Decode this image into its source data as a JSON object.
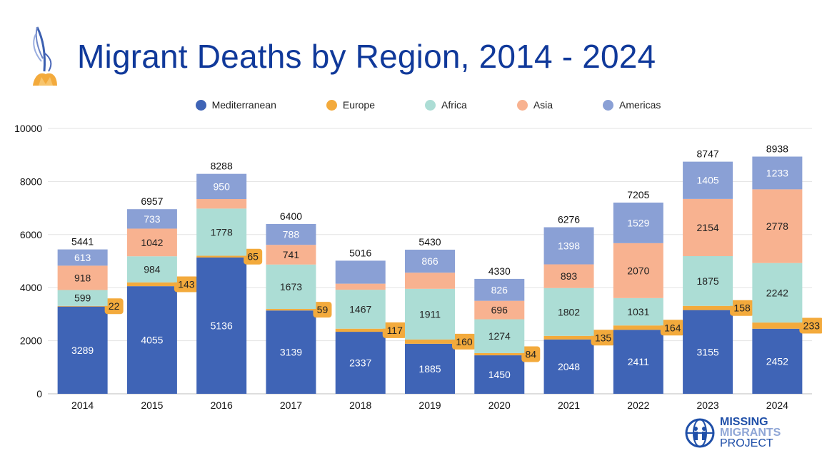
{
  "header": {
    "title": "Migrant Deaths by Region, 2014 - 2024",
    "logo_icon": "flower-icon"
  },
  "brand": {
    "line1": "MISSING",
    "line2": "MIGRANTS",
    "line3": "PROJECT",
    "icon": "globe-family-icon"
  },
  "colors": {
    "title": "#10399a",
    "Mediterranean": "#3f64b6",
    "Europe": "#f3aa3c",
    "Africa": "#acddd5",
    "Asia": "#f8b290",
    "Americas": "#8aa0d5"
  },
  "chart_data": {
    "type": "bar",
    "stacked": true,
    "title": "Migrant Deaths by Region, 2014 - 2024",
    "xlabel": "",
    "ylabel": "",
    "ylim": [
      0,
      10000
    ],
    "yticks": [
      0,
      2000,
      4000,
      6000,
      8000,
      10000
    ],
    "grid": true,
    "legend": "top-center",
    "categories": [
      "2014",
      "2015",
      "2016",
      "2017",
      "2018",
      "2019",
      "2020",
      "2021",
      "2022",
      "2023",
      "2024"
    ],
    "series": [
      {
        "name": "Mediterranean",
        "values": [
          3289,
          4055,
          5136,
          3139,
          2337,
          1885,
          1450,
          2048,
          2411,
          3155,
          2452
        ]
      },
      {
        "name": "Europe",
        "values": [
          22,
          143,
          65,
          59,
          117,
          160,
          84,
          135,
          164,
          158,
          233
        ]
      },
      {
        "name": "Africa",
        "values": [
          599,
          984,
          1778,
          1673,
          1467,
          1911,
          1274,
          1802,
          1031,
          1875,
          2242
        ]
      },
      {
        "name": "Asia",
        "values": [
          918,
          1042,
          359,
          741,
          229,
          608,
          696,
          893,
          2070,
          2154,
          2778
        ]
      },
      {
        "name": "Americas",
        "values": [
          613,
          733,
          950,
          788,
          866,
          866,
          826,
          1398,
          1529,
          1405,
          1233
        ]
      }
    ],
    "data_labels": [
      [
        "3289",
        "22",
        "599",
        "918",
        "613"
      ],
      [
        "4055",
        "143",
        "984",
        "1042",
        "733"
      ],
      [
        "5136",
        "65",
        "1778",
        "",
        "950"
      ],
      [
        "3139",
        "59",
        "1673",
        "741",
        "788"
      ],
      [
        "2337",
        "117",
        "1467",
        "",
        ""
      ],
      [
        "1885",
        "160",
        "1911",
        "",
        "866"
      ],
      [
        "1450",
        "84",
        "1274",
        "696",
        "826"
      ],
      [
        "2048",
        "135",
        "1802",
        "893",
        "1398"
      ],
      [
        "2411",
        "164",
        "1031",
        "2070",
        "1529"
      ],
      [
        "3155",
        "158",
        "1875",
        "2154",
        "1405"
      ],
      [
        "2452",
        "233",
        "2242",
        "2778",
        "1233"
      ]
    ],
    "totals": [
      5441,
      6957,
      8288,
      6400,
      5016,
      5430,
      4330,
      6276,
      7205,
      8747,
      8938
    ]
  }
}
